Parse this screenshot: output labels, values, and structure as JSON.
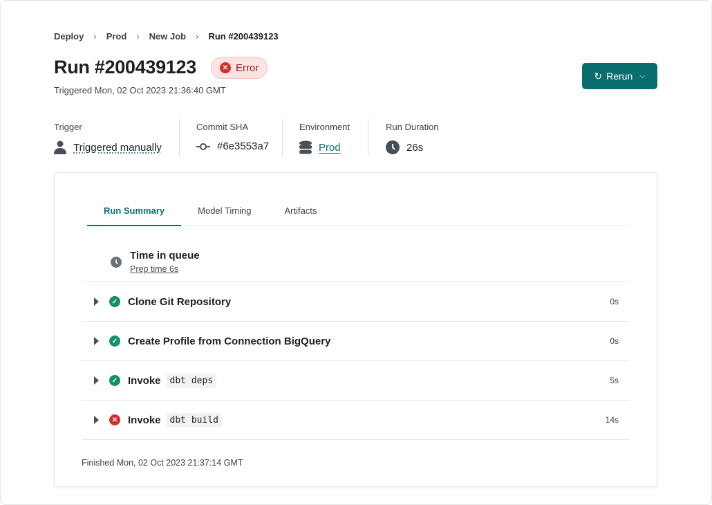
{
  "breadcrumb": [
    "Deploy",
    "Prod",
    "New Job",
    "Run #200439123"
  ],
  "title": "Run #200439123",
  "status": {
    "label": "Error",
    "color": "#d52f2a",
    "icon": "x-circle-icon"
  },
  "triggered": "Triggered Mon, 02 Oct 2023 21:36:40 GMT",
  "rerun_label": "Rerun",
  "meta": {
    "trigger": {
      "label": "Trigger",
      "value": "Triggered manually",
      "icon": "user-icon"
    },
    "commit": {
      "label": "Commit SHA",
      "value": "#6e3553a7",
      "icon": "commit-icon"
    },
    "environment": {
      "label": "Environment",
      "value": "Prod",
      "icon": "database-icon"
    },
    "duration": {
      "label": "Run Duration",
      "value": "26s",
      "icon": "clock-icon"
    }
  },
  "tabs": [
    "Run Summary",
    "Model Timing",
    "Artifacts"
  ],
  "queue": {
    "title": "Time in queue",
    "prep": "Prep time 6s"
  },
  "steps": [
    {
      "title": "Clone Git Repository",
      "code": "",
      "status": "success",
      "duration": "0s"
    },
    {
      "title": "Create Profile from Connection BigQuery",
      "code": "",
      "status": "success",
      "duration": "0s"
    },
    {
      "title": "Invoke",
      "code": "dbt deps",
      "status": "success",
      "duration": "5s"
    },
    {
      "title": "Invoke",
      "code": "dbt build",
      "status": "error",
      "duration": "14s"
    }
  ],
  "finished": "Finished Mon, 02 Oct 2023 21:37:14 GMT",
  "colors": {
    "accent": "#0b6e6e",
    "success": "#14906a",
    "error": "#d52f2a"
  }
}
